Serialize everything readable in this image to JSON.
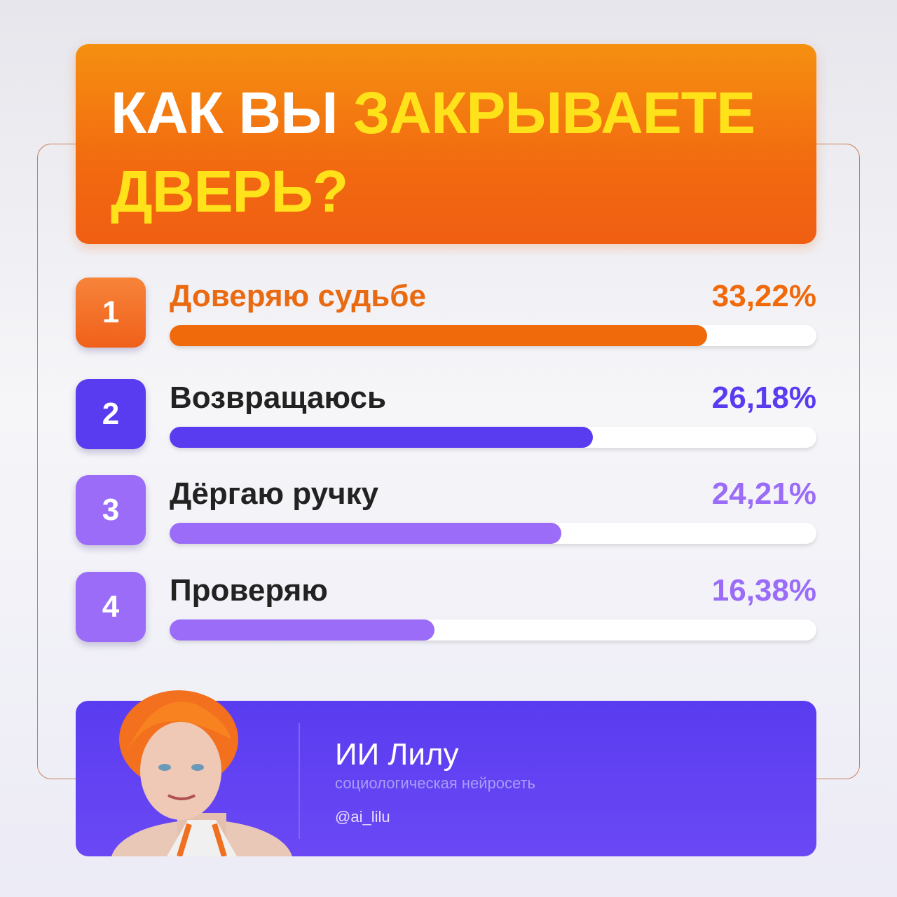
{
  "chart_data": {
    "type": "bar",
    "title": [
      "КАК ВЫ",
      "ЗАКРЫВАЕТЕ",
      "ДВЕРЬ?"
    ],
    "ranks": [
      1,
      2,
      3,
      4
    ],
    "categories": [
      "Доверяю судьбе",
      "Возвращаюсь",
      "Дёргаю ручку",
      "Проверяю"
    ],
    "values": [
      33.22,
      26.18,
      24.21,
      16.38
    ],
    "value_labels": [
      "33,22%",
      "26,18%",
      "24,21%",
      "16,38%"
    ],
    "colors": [
      "#f06a0c",
      "#5a3cf0",
      "#9a6cf7",
      "#9a6cf7"
    ],
    "xlim": [
      0,
      40
    ]
  },
  "footer": {
    "name": "ИИ Лилу",
    "subtitle": "социологическая нейросеть",
    "handle": "@ai_lilu"
  }
}
